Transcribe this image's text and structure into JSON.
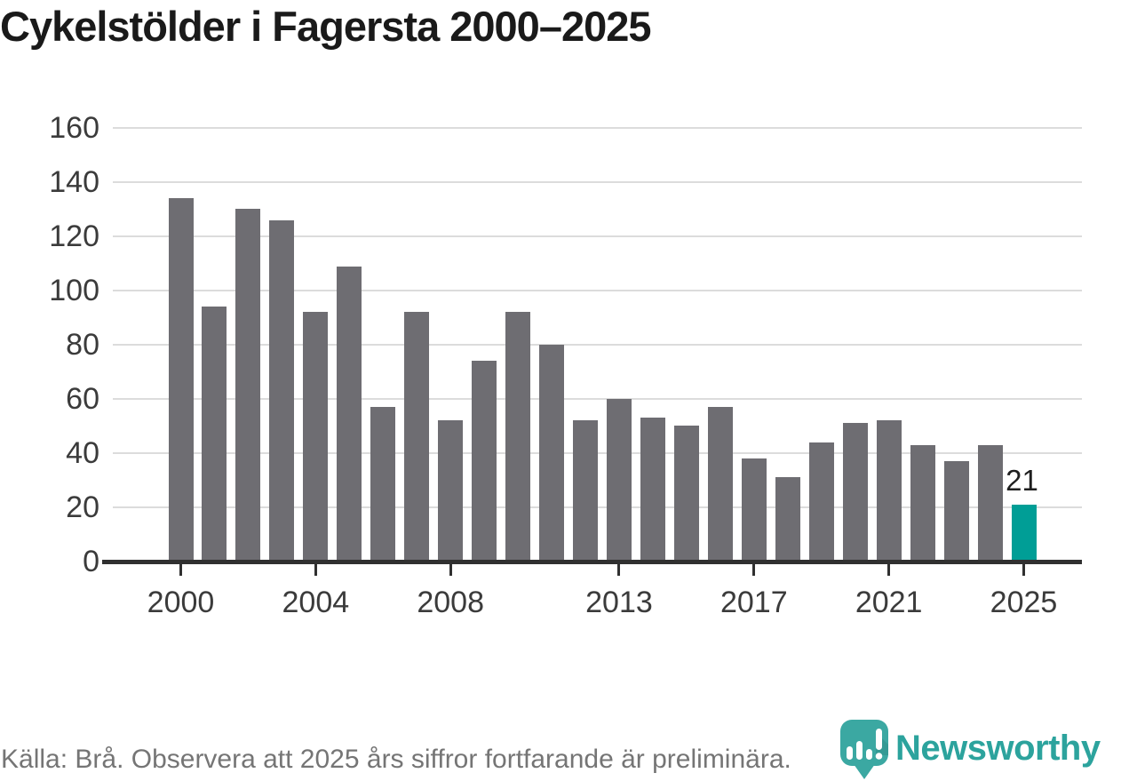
{
  "title": "Cykelstölder i Fagersta 2000–2025",
  "chart_data": {
    "type": "bar",
    "title": "Cykelstölder i Fagersta 2000–2025",
    "x": [
      2000,
      2001,
      2002,
      2003,
      2004,
      2005,
      2006,
      2007,
      2008,
      2009,
      2010,
      2011,
      2012,
      2013,
      2014,
      2015,
      2016,
      2017,
      2018,
      2019,
      2020,
      2021,
      2022,
      2023,
      2024,
      2025
    ],
    "values": [
      134,
      94,
      130,
      126,
      92,
      109,
      57,
      92,
      52,
      74,
      92,
      80,
      52,
      60,
      53,
      50,
      57,
      38,
      31,
      44,
      51,
      52,
      43,
      37,
      43,
      21
    ],
    "ylim": [
      0,
      160
    ],
    "yticks": [
      0,
      20,
      40,
      60,
      80,
      100,
      120,
      140,
      160
    ],
    "xtick_labels": [
      "2000",
      "2004",
      "2008",
      "2013",
      "2017",
      "2021",
      "2025"
    ],
    "grid": "horizontal-only",
    "legend": "none",
    "bar_color": "#6e6d72",
    "highlight_color": "#009e96",
    "highlight_year": 2025,
    "value_label": {
      "year": 2025,
      "text": "21"
    }
  },
  "footer": {
    "source": "Källa: Brå. Observera att 2025 års siffror fortfarande är preliminära.",
    "logo_text": "Newsworthy"
  },
  "colors": {
    "title_text": "#1a1a1a",
    "axis_text": "#3b3b3b",
    "grid_line": "#dcdcdc",
    "axis_line": "#303030",
    "bar_gray": "#6e6d72",
    "bar_teal": "#009e96",
    "footer_text": "#757575",
    "logo_teal": "#3ba8a2",
    "wordmark_teal": "#2ca39d"
  }
}
